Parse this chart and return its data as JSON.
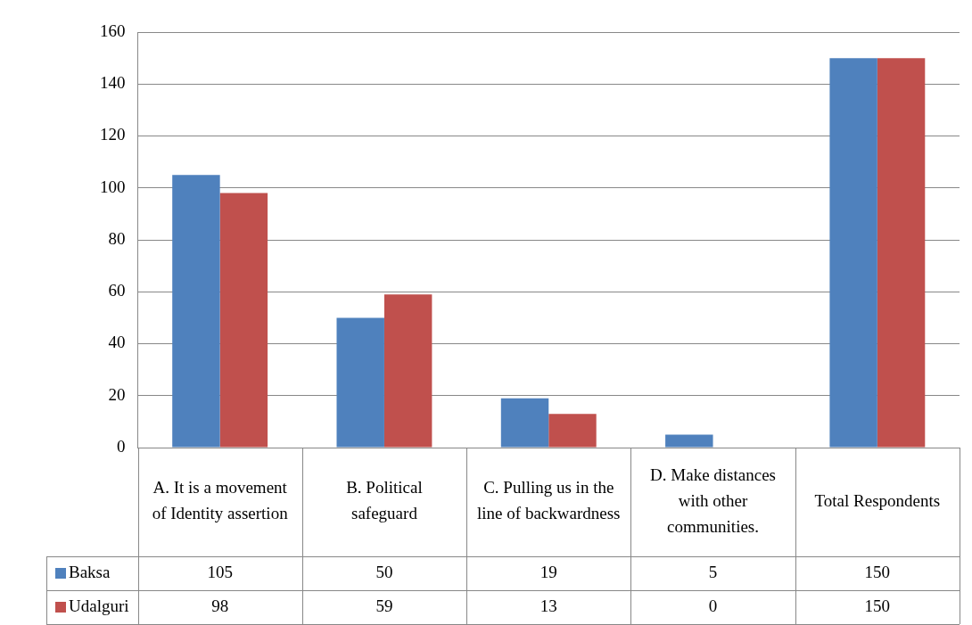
{
  "chart_data": {
    "type": "bar",
    "categories": [
      "A. It is a movement of Identity assertion",
      "B. Political safeguard",
      "C. Pulling us in the line of backwardness",
      "D. Make distances with other communities.",
      "Total Respondents"
    ],
    "series": [
      {
        "name": "Baksa",
        "color": "#4f81bd",
        "values": [
          105,
          50,
          19,
          5,
          150
        ]
      },
      {
        "name": "Udalguri",
        "color": "#c0504d",
        "values": [
          98,
          59,
          13,
          0,
          150
        ]
      }
    ],
    "ylim": [
      0,
      160
    ],
    "yticks": [
      0,
      20,
      40,
      60,
      80,
      100,
      120,
      140,
      160
    ],
    "grid": "y",
    "legend": "bottom",
    "data_labels": true
  }
}
